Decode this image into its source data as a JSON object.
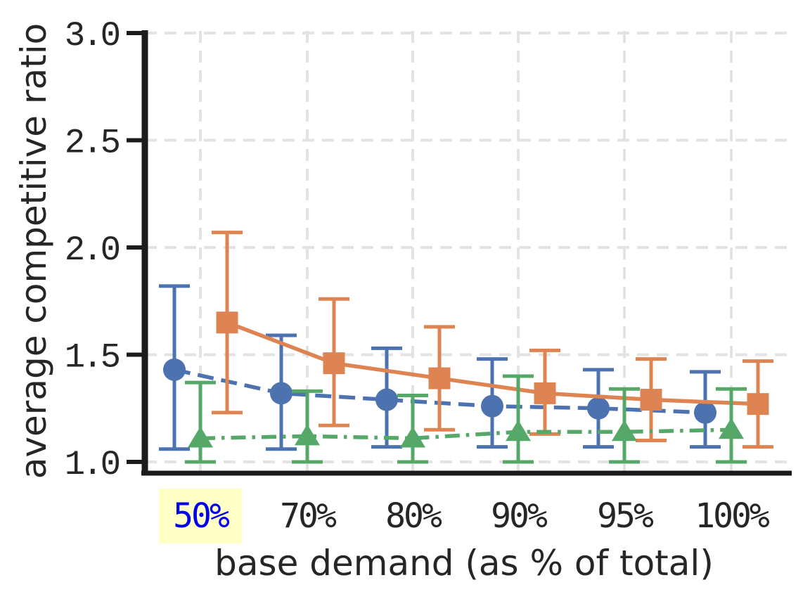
{
  "figure": {
    "title": "",
    "background": "#ffffff"
  },
  "chart_data": {
    "type": "line",
    "title": "",
    "xlabel": "base demand (as % of total)",
    "ylabel": "average competitive ratio",
    "categories": [
      "50%",
      "70%",
      "80%",
      "90%",
      "95%",
      "100%"
    ],
    "yticks": [
      1.0,
      1.5,
      2.0,
      2.5,
      3.0
    ],
    "ylim": [
      0.95,
      3.0
    ],
    "grid": true,
    "grid_style": "dashed",
    "legend": "none",
    "highlighted_category": {
      "label": "50%",
      "text_color": "#0000ee",
      "background_color": "#ffffc6"
    },
    "axis_colors": {
      "spine": "#1b1b1b",
      "tick_label": "#262626",
      "grid": "#e3e3e3"
    },
    "series": [
      {
        "name": "circle-dashed-series",
        "marker": "circle",
        "line_style": "dashed",
        "color": "#4C72B0",
        "values": [
          1.43,
          1.32,
          1.29,
          1.26,
          1.25,
          1.23
        ],
        "err_upper": [
          1.82,
          1.59,
          1.53,
          1.48,
          1.43,
          1.42
        ],
        "err_lower": [
          1.06,
          1.06,
          1.07,
          1.07,
          1.07,
          1.07
        ]
      },
      {
        "name": "square-solid-series",
        "marker": "square",
        "line_style": "solid",
        "color": "#DD8452",
        "values": [
          1.65,
          1.46,
          1.39,
          1.32,
          1.29,
          1.27
        ],
        "err_upper": [
          2.07,
          1.76,
          1.63,
          1.52,
          1.48,
          1.47
        ],
        "err_lower": [
          1.23,
          1.17,
          1.15,
          1.13,
          1.1,
          1.07
        ]
      },
      {
        "name": "triangle-dashdot-series",
        "marker": "triangle",
        "line_style": "dashdot",
        "color": "#55A868",
        "values": [
          1.11,
          1.12,
          1.11,
          1.14,
          1.14,
          1.15
        ],
        "err_upper": [
          1.37,
          1.33,
          1.31,
          1.4,
          1.34,
          1.34
        ],
        "err_lower": [
          1.0,
          1.0,
          1.0,
          1.0,
          1.0,
          1.0
        ]
      }
    ]
  }
}
